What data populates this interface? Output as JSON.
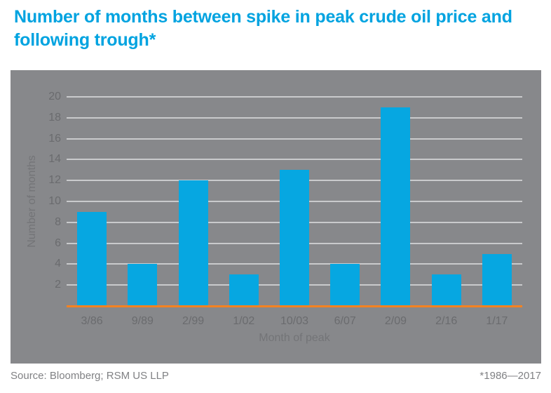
{
  "page": {
    "title": "Number of months between spike in peak crude oil price and following trough*",
    "source": "Source: Bloomberg; RSM US LLP",
    "footnote": "*1986—2017"
  },
  "colors": {
    "title": "#00A3E0",
    "bar": "#06A7E1",
    "panel_bg": "#87888B",
    "gridline": "#C9CACC",
    "tick_label": "#6A6B6E",
    "axis_title": "#737477",
    "baseline": "#F58220",
    "footer_text": "#808184"
  },
  "chart_data": {
    "type": "bar",
    "categories": [
      "3/86",
      "9/89",
      "2/99",
      "1/02",
      "10/03",
      "6/07",
      "2/09",
      "2/16",
      "1/17"
    ],
    "values": [
      9,
      4,
      12,
      3,
      13,
      4,
      19,
      3,
      5
    ],
    "title": "Number of months between spike in peak crude oil price and following trough*",
    "xlabel": "Month of peak",
    "ylabel": "Number of months",
    "ylim": [
      0,
      20
    ],
    "y_ticks": [
      2,
      4,
      6,
      8,
      10,
      12,
      14,
      16,
      18,
      20
    ],
    "grid": true,
    "legend": false,
    "plot_background": "gray",
    "baseline_color_note": "orange x-axis line at zero"
  }
}
